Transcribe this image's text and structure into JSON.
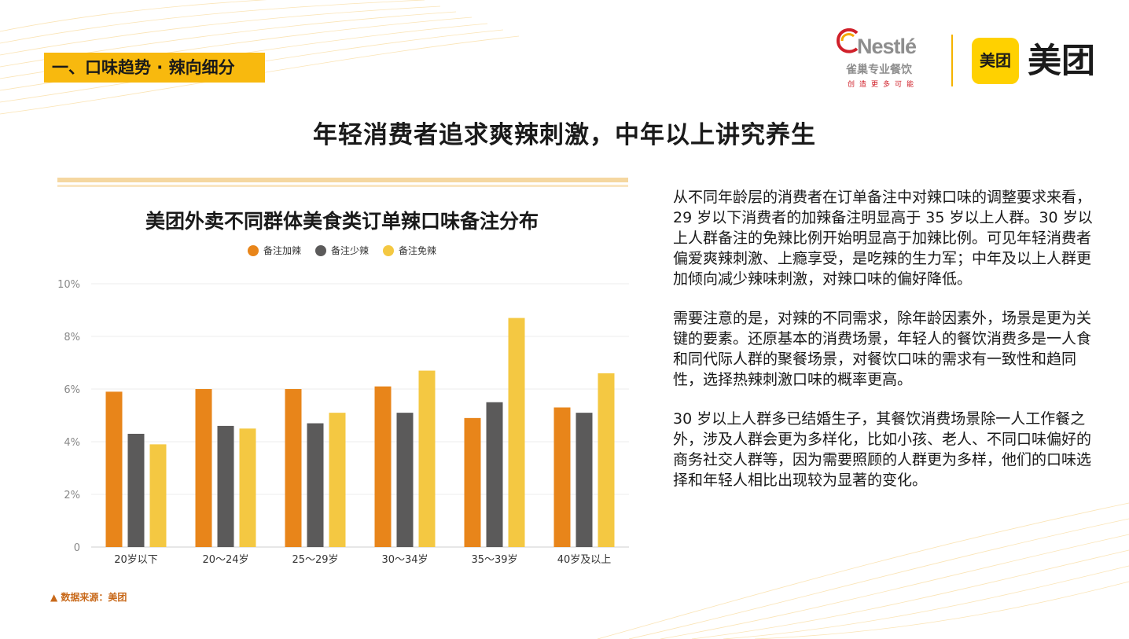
{
  "section_tag": "一、口味趋势 · 辣向细分",
  "brand": {
    "nestle_word": "Nestlé",
    "nestle_sub": "雀巢专业餐饮",
    "nestle_slogan": "创造更多可能",
    "meituan_badge": "美团",
    "meituan_word": "美团"
  },
  "page_title": "年轻消费者追求爽辣刺激，中年以上讲究养生",
  "chart_data": {
    "type": "bar",
    "title": "美团外卖不同群体美食类订单辣口味备注分布",
    "categories": [
      "20岁以下",
      "20～24岁",
      "25～29岁",
      "30～34岁",
      "35～39岁",
      "40岁及以上"
    ],
    "series": [
      {
        "name": "备注加辣",
        "color": "#e8851a",
        "values": [
          5.9,
          6.0,
          6.0,
          6.1,
          4.9,
          5.3
        ]
      },
      {
        "name": "备注少辣",
        "color": "#5b5a5a",
        "values": [
          4.3,
          4.6,
          4.7,
          5.1,
          5.5,
          5.1
        ]
      },
      {
        "name": "备注免辣",
        "color": "#f4c842",
        "values": [
          3.9,
          4.5,
          5.1,
          6.7,
          8.7,
          6.6
        ]
      }
    ],
    "yticks": [
      "0",
      "2%",
      "4%",
      "6%",
      "8%",
      "10%"
    ],
    "ylim": [
      0,
      10
    ],
    "grid": true,
    "legend": "top-center"
  },
  "source": "▲ 数据来源：美团",
  "paragraphs": [
    "从不同年龄层的消费者在订单备注中对辣口味的调整要求来看，29 岁以下消费者的加辣备注明显高于 35 岁以上人群。30 岁以上人群备注的免辣比例开始明显高于加辣比例。可见年轻消费者偏爱爽辣刺激、上瘾享受，是吃辣的生力军；中年及以上人群更加倾向减少辣味刺激，对辣口味的偏好降低。",
    "需要注意的是，对辣的不同需求，除年龄因素外，场景是更为关键的要素。还原基本的消费场景，年轻人的餐饮消费多是一人食和同代际人群的聚餐场景，对餐饮口味的需求有一致性和趋同性，选择热辣刺激口味的概率更高。",
    "30 岁以上人群多已结婚生子，其餐饮消费场景除一人工作餐之外，涉及人群会更为多样化，比如小孩、老人、不同口味偏好的商务社交人群等，因为需要照顾的人群更为多样，他们的口味选择和年轻人相比出现较为显著的变化。"
  ]
}
